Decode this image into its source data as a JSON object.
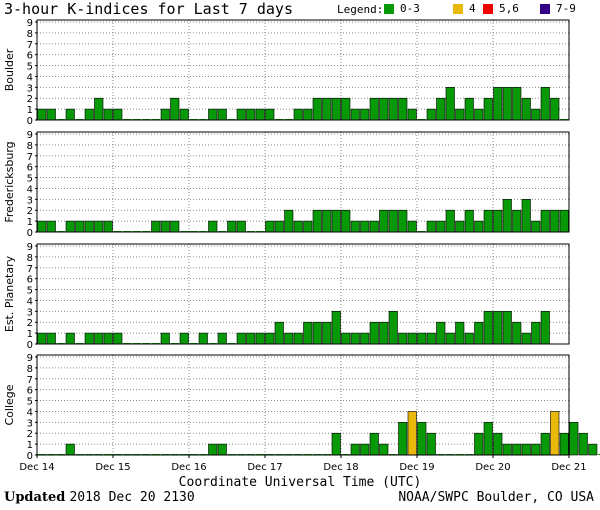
{
  "header": {
    "title": "3-hour K-indices for Last 7 days",
    "legend_label": "Legend:",
    "legend": [
      {
        "label": "0-3",
        "color": "#089908"
      },
      {
        "label": "4",
        "color": "#e8b90a"
      },
      {
        "label": "5,6",
        "color": "#ee0000"
      },
      {
        "label": "7-9",
        "color": "#330088"
      }
    ]
  },
  "footer": {
    "updated_label": "Updated",
    "updated_value": "2018 Dec 20 2130",
    "source": "NOAA/SWPC Boulder, CO USA"
  },
  "chart_data": {
    "type": "bar",
    "xlabel": "Coordinate Universal Time (UTC)",
    "x_ticks": [
      "Dec 14",
      "Dec 15",
      "Dec 16",
      "Dec 17",
      "Dec 18",
      "Dec 19",
      "Dec 20",
      "Dec 21"
    ],
    "ylim": [
      0,
      9
    ],
    "y_ticks": [
      0,
      1,
      2,
      3,
      4,
      5,
      6,
      7,
      8,
      9
    ],
    "bins_per_day": 8,
    "color_scale": [
      {
        "range": "0-3",
        "color": "#089908"
      },
      {
        "range": "4",
        "color": "#e8b90a"
      },
      {
        "range": "5,6",
        "color": "#ee0000"
      },
      {
        "range": "7-9",
        "color": "#330088"
      }
    ],
    "series": [
      {
        "name": "Boulder",
        "values": [
          1,
          1,
          0,
          1,
          0,
          1,
          2,
          1,
          1,
          0,
          0,
          0,
          0,
          1,
          2,
          1,
          0,
          0,
          1,
          1,
          0,
          1,
          1,
          1,
          1,
          0,
          0,
          1,
          1,
          2,
          2,
          2,
          2,
          1,
          1,
          2,
          2,
          2,
          2,
          1,
          0,
          1,
          2,
          3,
          1,
          2,
          1,
          2,
          3,
          3,
          3,
          2,
          1,
          3,
          2,
          0
        ]
      },
      {
        "name": "Fredericksburg",
        "values": [
          1,
          1,
          0,
          1,
          1,
          1,
          1,
          1,
          0,
          0,
          0,
          0,
          1,
          1,
          1,
          0,
          0,
          0,
          1,
          0,
          1,
          1,
          0,
          0,
          1,
          1,
          2,
          1,
          1,
          2,
          2,
          2,
          2,
          1,
          1,
          1,
          2,
          2,
          2,
          1,
          0,
          1,
          1,
          2,
          1,
          2,
          1,
          2,
          2,
          3,
          2,
          3,
          1,
          2,
          2,
          2
        ]
      },
      {
        "name": "Est. Planetary",
        "values": [
          1,
          1,
          0,
          1,
          0,
          1,
          1,
          1,
          1,
          0,
          0,
          0,
          0,
          1,
          0,
          1,
          0,
          1,
          0,
          1,
          0,
          1,
          1,
          1,
          1,
          2,
          1,
          1,
          2,
          2,
          2,
          3,
          1,
          1,
          1,
          2,
          2,
          3,
          1,
          1,
          1,
          1,
          2,
          1,
          2,
          1,
          2,
          3,
          3,
          3,
          2,
          1,
          2,
          3
        ]
      },
      {
        "name": "College",
        "values": [
          0,
          0,
          0,
          1,
          0,
          0,
          0,
          0,
          0,
          0,
          0,
          0,
          0,
          0,
          0,
          0,
          0,
          0,
          1,
          1,
          0,
          0,
          0,
          0,
          0,
          0,
          0,
          0,
          0,
          0,
          0,
          2,
          0,
          1,
          1,
          2,
          1,
          0,
          3,
          4,
          3,
          2,
          0,
          0,
          0,
          0,
          2,
          3,
          2,
          1,
          1,
          1,
          1,
          2,
          4,
          2,
          3,
          2,
          1,
          0
        ]
      }
    ]
  }
}
